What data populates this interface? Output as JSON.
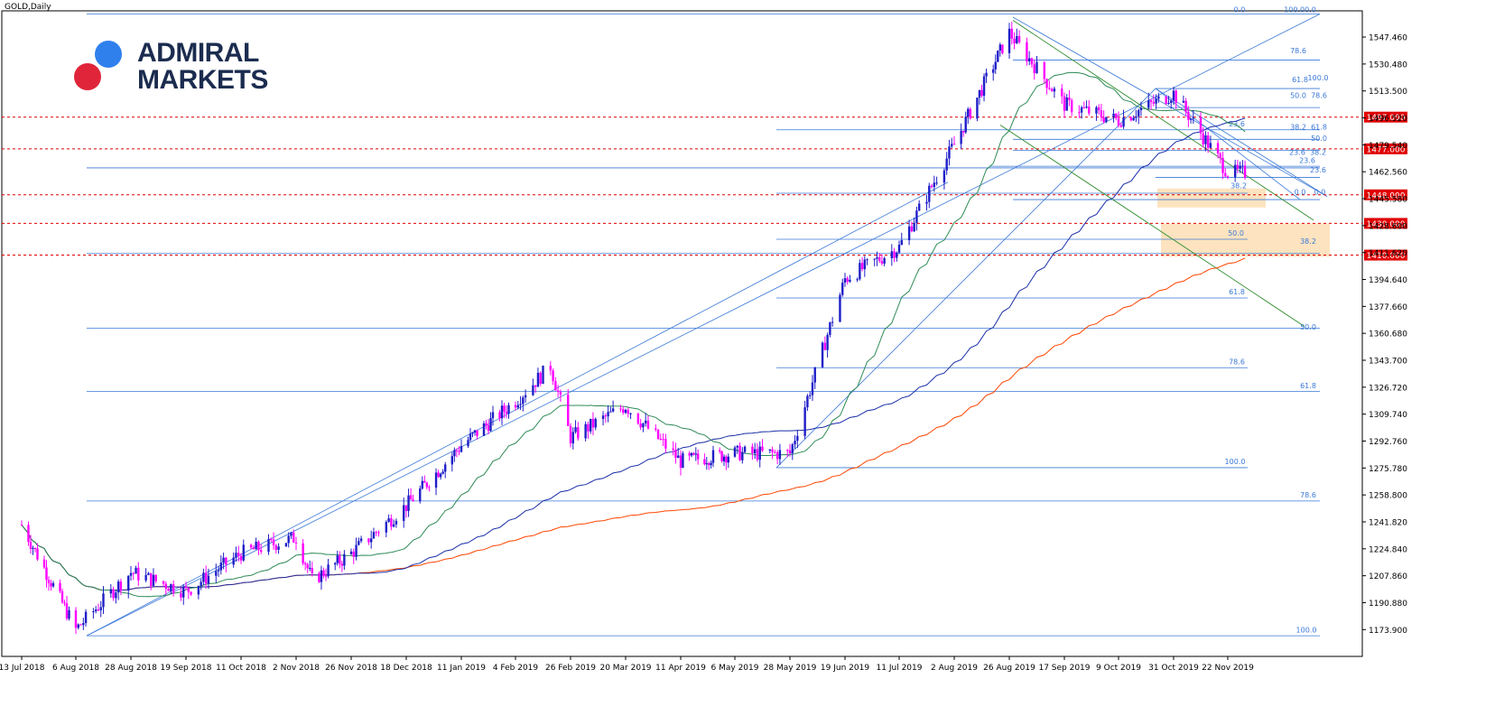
{
  "chart_data": {
    "type": "candlestick",
    "title": "GOLD,Daily",
    "logo": {
      "text_line1": "ADMIRAL",
      "text_line2": "MARKETS",
      "dot_blue": "#2f80ed",
      "dot_red": "#e0253a"
    },
    "colors": {
      "bull": "#1e1ec8",
      "bear": "#ff00ff",
      "ma_fast": "#2e8b57",
      "ma_mid": "#1a2ea8",
      "ma_slow": "#ff4500",
      "fib": "#3a78d8",
      "level": "#e00000",
      "channel": "#2e8b2e",
      "zone": "#fde3bf"
    },
    "x_ticks": [
      "13 Jul 2018",
      "6 Aug 2018",
      "28 Aug 2018",
      "19 Sep 2018",
      "11 Oct 2018",
      "2 Nov 2018",
      "26 Nov 2018",
      "18 Dec 2018",
      "11 Jan 2019",
      "4 Feb 2019",
      "26 Feb 2019",
      "20 Mar 2019",
      "11 Apr 2019",
      "6 May 2019",
      "28 May 2019",
      "19 Jun 2019",
      "11 Jul 2019",
      "2 Aug 2019",
      "26 Aug 2019",
      "17 Sep 2019",
      "9 Oct 2019",
      "31 Oct 2019",
      "22 Nov 2019"
    ],
    "y_ticks": [
      "1547.460",
      "1530.480",
      "1513.500",
      "1496.520",
      "1479.540",
      "1462.560",
      "1445.580",
      "1428.600",
      "1411.620",
      "1394.640",
      "1377.660",
      "1360.680",
      "1343.700",
      "1326.720",
      "1309.740",
      "1292.760",
      "1275.780",
      "1258.800",
      "1241.820",
      "1224.840",
      "1207.860",
      "1190.880",
      "1173.900"
    ],
    "ylim": [
      1157,
      1564
    ],
    "levels": [
      {
        "value": 1497.0,
        "label": "1497.000"
      },
      {
        "value": 1477.0,
        "label": "1477.000"
      },
      {
        "value": 1448.0,
        "label": "1448.000"
      },
      {
        "value": 1430.0,
        "label": "1430.000"
      },
      {
        "value": 1410.0,
        "label": "1410.000"
      }
    ],
    "fib_labels": [
      "0.0",
      "100.00.0",
      "78.6",
      "61.8",
      "100.0",
      "50.0",
      "78.6",
      "23.6",
      "38.2",
      "61.8",
      "50.0",
      "23.6",
      "38.2",
      "23.6",
      "23.6",
      "38.2",
      "0.0",
      "0.0",
      "50.0",
      "38.2",
      "61.8",
      "50.0",
      "78.6",
      "61.8",
      "100.0",
      "78.6",
      "100.0"
    ],
    "price_anchors": [
      {
        "date": "13 Jul 2018",
        "price": 1240
      },
      {
        "date": "6 Aug 2018",
        "price": 1174
      },
      {
        "date": "28 Aug 2018",
        "price": 1210
      },
      {
        "date": "19 Sep 2018",
        "price": 1198
      },
      {
        "date": "11 Oct 2018",
        "price": 1222
      },
      {
        "date": "2 Nov 2018",
        "price": 1232
      },
      {
        "date": "9 Nov 2018",
        "price": 1205
      },
      {
        "date": "26 Nov 2018",
        "price": 1222
      },
      {
        "date": "18 Dec 2018",
        "price": 1252
      },
      {
        "date": "11 Jan 2019",
        "price": 1290
      },
      {
        "date": "4 Feb 2019",
        "price": 1318
      },
      {
        "date": "18 Feb 2019",
        "price": 1340
      },
      {
        "date": "26 Feb 2019",
        "price": 1295
      },
      {
        "date": "20 Mar 2019",
        "price": 1315
      },
      {
        "date": "11 Apr 2019",
        "price": 1280
      },
      {
        "date": "6 May 2019",
        "price": 1285
      },
      {
        "date": "28 May 2019",
        "price": 1285
      },
      {
        "date": "19 Jun 2019",
        "price": 1395
      },
      {
        "date": "11 Jul 2019",
        "price": 1415
      },
      {
        "date": "2 Aug 2019",
        "price": 1480
      },
      {
        "date": "26 Aug 2019",
        "price": 1550
      },
      {
        "date": "17 Sep 2019",
        "price": 1505
      },
      {
        "date": "9 Oct 2019",
        "price": 1495
      },
      {
        "date": "31 Oct 2019",
        "price": 1512
      },
      {
        "date": "22 Nov 2019",
        "price": 1462
      }
    ]
  }
}
